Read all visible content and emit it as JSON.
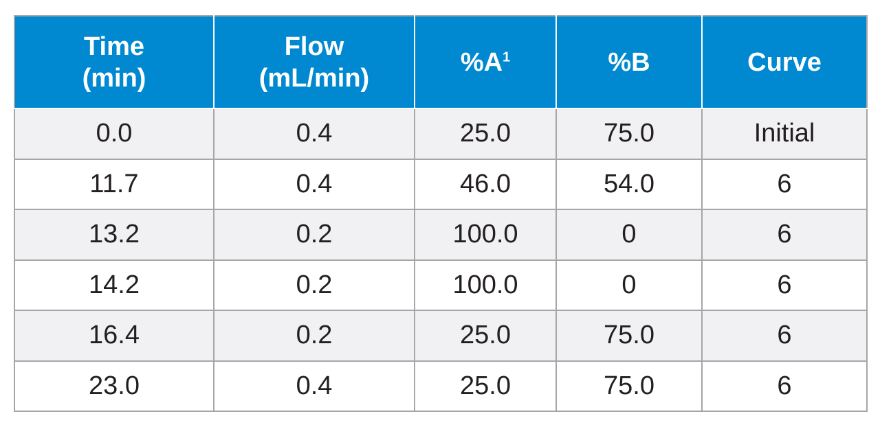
{
  "table": {
    "headers": [
      {
        "line1": "Time",
        "line2": "(min)",
        "sup": ""
      },
      {
        "line1": "Flow",
        "line2": "(mL/min)",
        "sup": ""
      },
      {
        "line1": "%A",
        "line2": "",
        "sup": "1"
      },
      {
        "line1": "%B",
        "line2": "",
        "sup": ""
      },
      {
        "line1": "Curve",
        "line2": "",
        "sup": ""
      }
    ],
    "rows": [
      [
        "0.0",
        "0.4",
        "25.0",
        "75.0",
        "Initial"
      ],
      [
        "11.7",
        "0.4",
        "46.0",
        "54.0",
        "6"
      ],
      [
        "13.2",
        "0.2",
        "100.0",
        "0",
        "6"
      ],
      [
        "14.2",
        "0.2",
        "100.0",
        "0",
        "6"
      ],
      [
        "16.4",
        "0.2",
        "25.0",
        "75.0",
        "6"
      ],
      [
        "23.0",
        "0.4",
        "25.0",
        "75.0",
        "6"
      ]
    ]
  },
  "colors": {
    "header_bg": "#0089d0",
    "header_text": "#ffffff",
    "row_alt_bg": "#f1f1f3",
    "row_bg": "#ffffff",
    "grid": "#a6a6a6",
    "text": "#231f20"
  }
}
